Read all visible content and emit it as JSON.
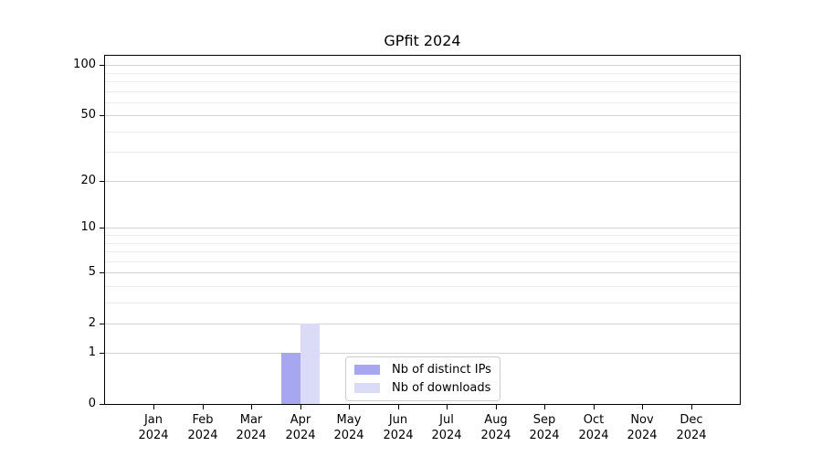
{
  "chart_data": {
    "type": "bar",
    "title": "GPfit 2024",
    "categories": [
      "Jan 2024",
      "Feb 2024",
      "Mar 2024",
      "Apr 2024",
      "May 2024",
      "Jun 2024",
      "Jul 2024",
      "Aug 2024",
      "Sep 2024",
      "Oct 2024",
      "Nov 2024",
      "Dec 2024"
    ],
    "series": [
      {
        "name": "Nb of distinct IPs",
        "color": "#a6a6f1",
        "values": [
          0,
          0,
          0,
          1,
          0,
          0,
          0,
          0,
          0,
          0,
          0,
          0
        ]
      },
      {
        "name": "Nb of downloads",
        "color": "#dbdbf8",
        "values": [
          0,
          0,
          0,
          2,
          0,
          0,
          0,
          0,
          0,
          0,
          0,
          0
        ]
      }
    ],
    "y_axis": {
      "scale": "log10(1+x)",
      "ticks": [
        0,
        1,
        2,
        5,
        10,
        20,
        50,
        100
      ],
      "minor_ticks": [
        3,
        4,
        6,
        7,
        8,
        9,
        30,
        40,
        60,
        70,
        80,
        90
      ],
      "ylim": [
        0,
        114
      ]
    },
    "x_axis": {
      "tick_count": 12
    },
    "grid": {
      "major_color": "#d4d4d4",
      "minor_color": "#ececec"
    },
    "legend": {
      "position": "lower-center",
      "border_color": "#cccccc"
    }
  }
}
